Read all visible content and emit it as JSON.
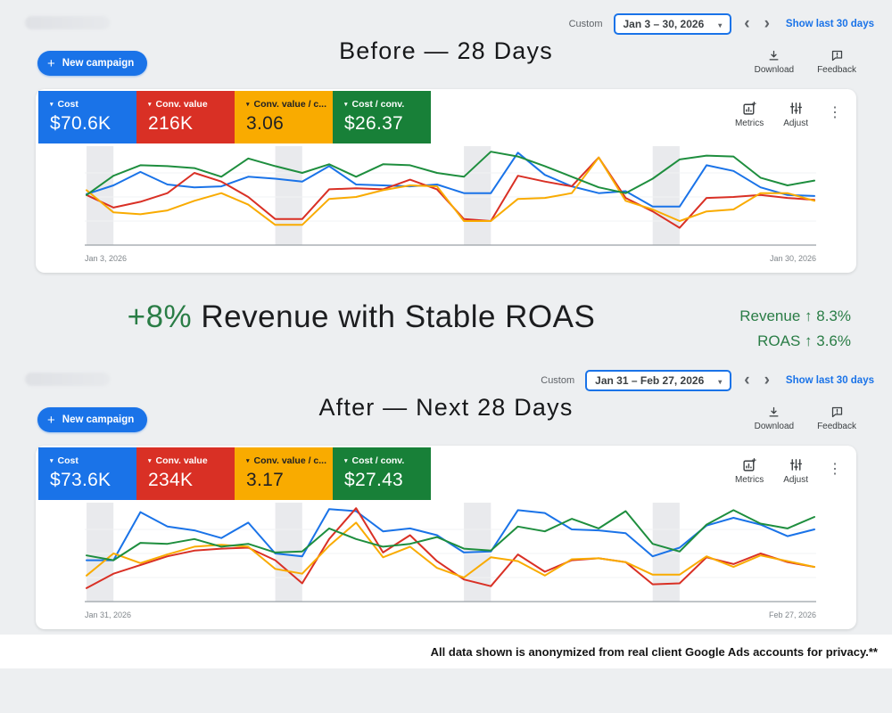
{
  "ui": {
    "custom": "Custom",
    "show_last": "Show last 30 days",
    "new_campaign": "New campaign",
    "download": "Download",
    "feedback": "Feedback",
    "metrics": "Metrics",
    "adjust": "Adjust",
    "caret": "▾",
    "chevron_left": "‹",
    "chevron_right": "›",
    "kebab": "⋮",
    "plus": "+"
  },
  "banner": {
    "highlight": "+8%",
    "headline_rest": " Revenue with Stable ROAS",
    "stat_revenue": "Revenue ↑ 8.3%",
    "stat_roas": "ROAS ↑ 3.6%",
    "accent_green": "#2a7d46"
  },
  "disclaimer": "All data shown is anonymized from real client Google Ads accounts for privacy.**",
  "dashboards": [
    {
      "title": "Before — 28 Days",
      "date_range": "Jan 3 – 30, 2026",
      "x_start": "Jan 3, 2026",
      "x_end": "Jan 30, 2026",
      "cards": [
        {
          "label": "Cost",
          "value": "$70.6K",
          "bg": "#1a73e8",
          "fg": "#ffffff"
        },
        {
          "label": "Conv. value",
          "value": "216K",
          "bg": "#d93025",
          "fg": "#ffffff"
        },
        {
          "label": "Conv. value / c...",
          "value": "3.06",
          "bg": "#f9ab00",
          "fg": "#202124"
        },
        {
          "label": "Cost / conv.",
          "value": "$26.37",
          "bg": "#188038",
          "fg": "#ffffff"
        }
      ]
    },
    {
      "title": "After — Next 28 Days",
      "date_range": "Jan 31 – Feb 27, 2026",
      "x_start": "Jan 31, 2026",
      "x_end": "Feb 27, 2026",
      "cards": [
        {
          "label": "Cost",
          "value": "$73.6K",
          "bg": "#1a73e8",
          "fg": "#ffffff"
        },
        {
          "label": "Conv. value",
          "value": "234K",
          "bg": "#d93025",
          "fg": "#ffffff"
        },
        {
          "label": "Conv. value / c...",
          "value": "3.17",
          "bg": "#f9ab00",
          "fg": "#202124"
        },
        {
          "label": "Cost / conv.",
          "value": "$27.43",
          "bg": "#188038",
          "fg": "#ffffff"
        }
      ]
    }
  ],
  "chart_data": [
    {
      "type": "line",
      "title": "Before — 28 Days",
      "x_start": "Jan 3, 2026",
      "x_end": "Jan 30, 2026",
      "days": 28,
      "ylabel": "normalized value (0-100, estimated from chart pixels; no y-axis shown)",
      "ylim": [
        0,
        100
      ],
      "grid": "faint horizontal only",
      "legend": "none (colors match metric cards)",
      "weekend_bands": [
        [
          1,
          2
        ],
        [
          8,
          9
        ],
        [
          15,
          16
        ],
        [
          22,
          23
        ]
      ],
      "series": [
        {
          "name": "Cost",
          "color": "#1a73e8",
          "values": [
            53,
            62,
            76,
            63,
            60,
            61,
            71,
            69,
            66,
            82,
            63,
            62,
            61,
            63,
            54,
            54,
            96,
            73,
            61,
            54,
            56,
            40,
            40,
            83,
            77,
            60,
            52,
            51
          ]
        },
        {
          "name": "Conv. value",
          "color": "#d93025",
          "values": [
            52,
            39,
            45,
            54,
            75,
            66,
            50,
            27,
            27,
            58,
            59,
            58,
            68,
            58,
            27,
            25,
            72,
            66,
            61,
            91,
            49,
            35,
            18,
            49,
            50,
            52,
            49,
            47
          ]
        },
        {
          "name": "Conv. value / cost",
          "color": "#f9ab00",
          "values": [
            57,
            34,
            32,
            36,
            46,
            54,
            42,
            21,
            21,
            48,
            50,
            57,
            62,
            61,
            25,
            25,
            48,
            49,
            54,
            91,
            46,
            37,
            25,
            35,
            37,
            54,
            54,
            46
          ]
        },
        {
          "name": "Cost / conv.",
          "color": "#1e8e3e",
          "values": [
            52,
            72,
            83,
            82,
            80,
            71,
            90,
            82,
            75,
            84,
            71,
            84,
            83,
            75,
            71,
            97,
            92,
            82,
            71,
            60,
            54,
            69,
            89,
            93,
            92,
            70,
            62,
            67
          ]
        }
      ]
    },
    {
      "type": "line",
      "title": "After — Next 28 Days",
      "x_start": "Jan 31, 2026",
      "x_end": "Feb 27, 2026",
      "days": 28,
      "ylabel": "normalized value (0-100, estimated from chart pixels; no y-axis shown)",
      "ylim": [
        0,
        100
      ],
      "grid": "faint horizontal only",
      "legend": "none (colors match metric cards)",
      "weekend_bands": [
        [
          1,
          2
        ],
        [
          8,
          9
        ],
        [
          15,
          16
        ],
        [
          22,
          23
        ]
      ],
      "series": [
        {
          "name": "Cost",
          "color": "#1a73e8",
          "values": [
            43,
            43,
            93,
            78,
            74,
            66,
            82,
            50,
            47,
            96,
            94,
            73,
            76,
            69,
            51,
            52,
            95,
            92,
            75,
            74,
            71,
            47,
            56,
            79,
            87,
            80,
            68,
            75
          ]
        },
        {
          "name": "Conv. value",
          "color": "#d93025",
          "values": [
            14,
            29,
            38,
            47,
            53,
            55,
            56,
            43,
            19,
            65,
            97,
            51,
            69,
            42,
            23,
            16,
            49,
            31,
            43,
            45,
            41,
            18,
            19,
            46,
            39,
            50,
            41,
            36
          ]
        },
        {
          "name": "Conv. value / cost",
          "color": "#f9ab00",
          "values": [
            27,
            50,
            40,
            49,
            57,
            59,
            57,
            34,
            29,
            58,
            82,
            46,
            57,
            35,
            25,
            46,
            42,
            27,
            44,
            45,
            41,
            28,
            28,
            47,
            36,
            48,
            42,
            36
          ]
        },
        {
          "name": "Cost / conv.",
          "color": "#1e8e3e",
          "values": [
            48,
            43,
            61,
            60,
            65,
            57,
            60,
            51,
            52,
            76,
            65,
            57,
            60,
            67,
            55,
            53,
            78,
            73,
            86,
            76,
            94,
            60,
            52,
            80,
            95,
            81,
            76,
            88
          ]
        }
      ]
    }
  ]
}
